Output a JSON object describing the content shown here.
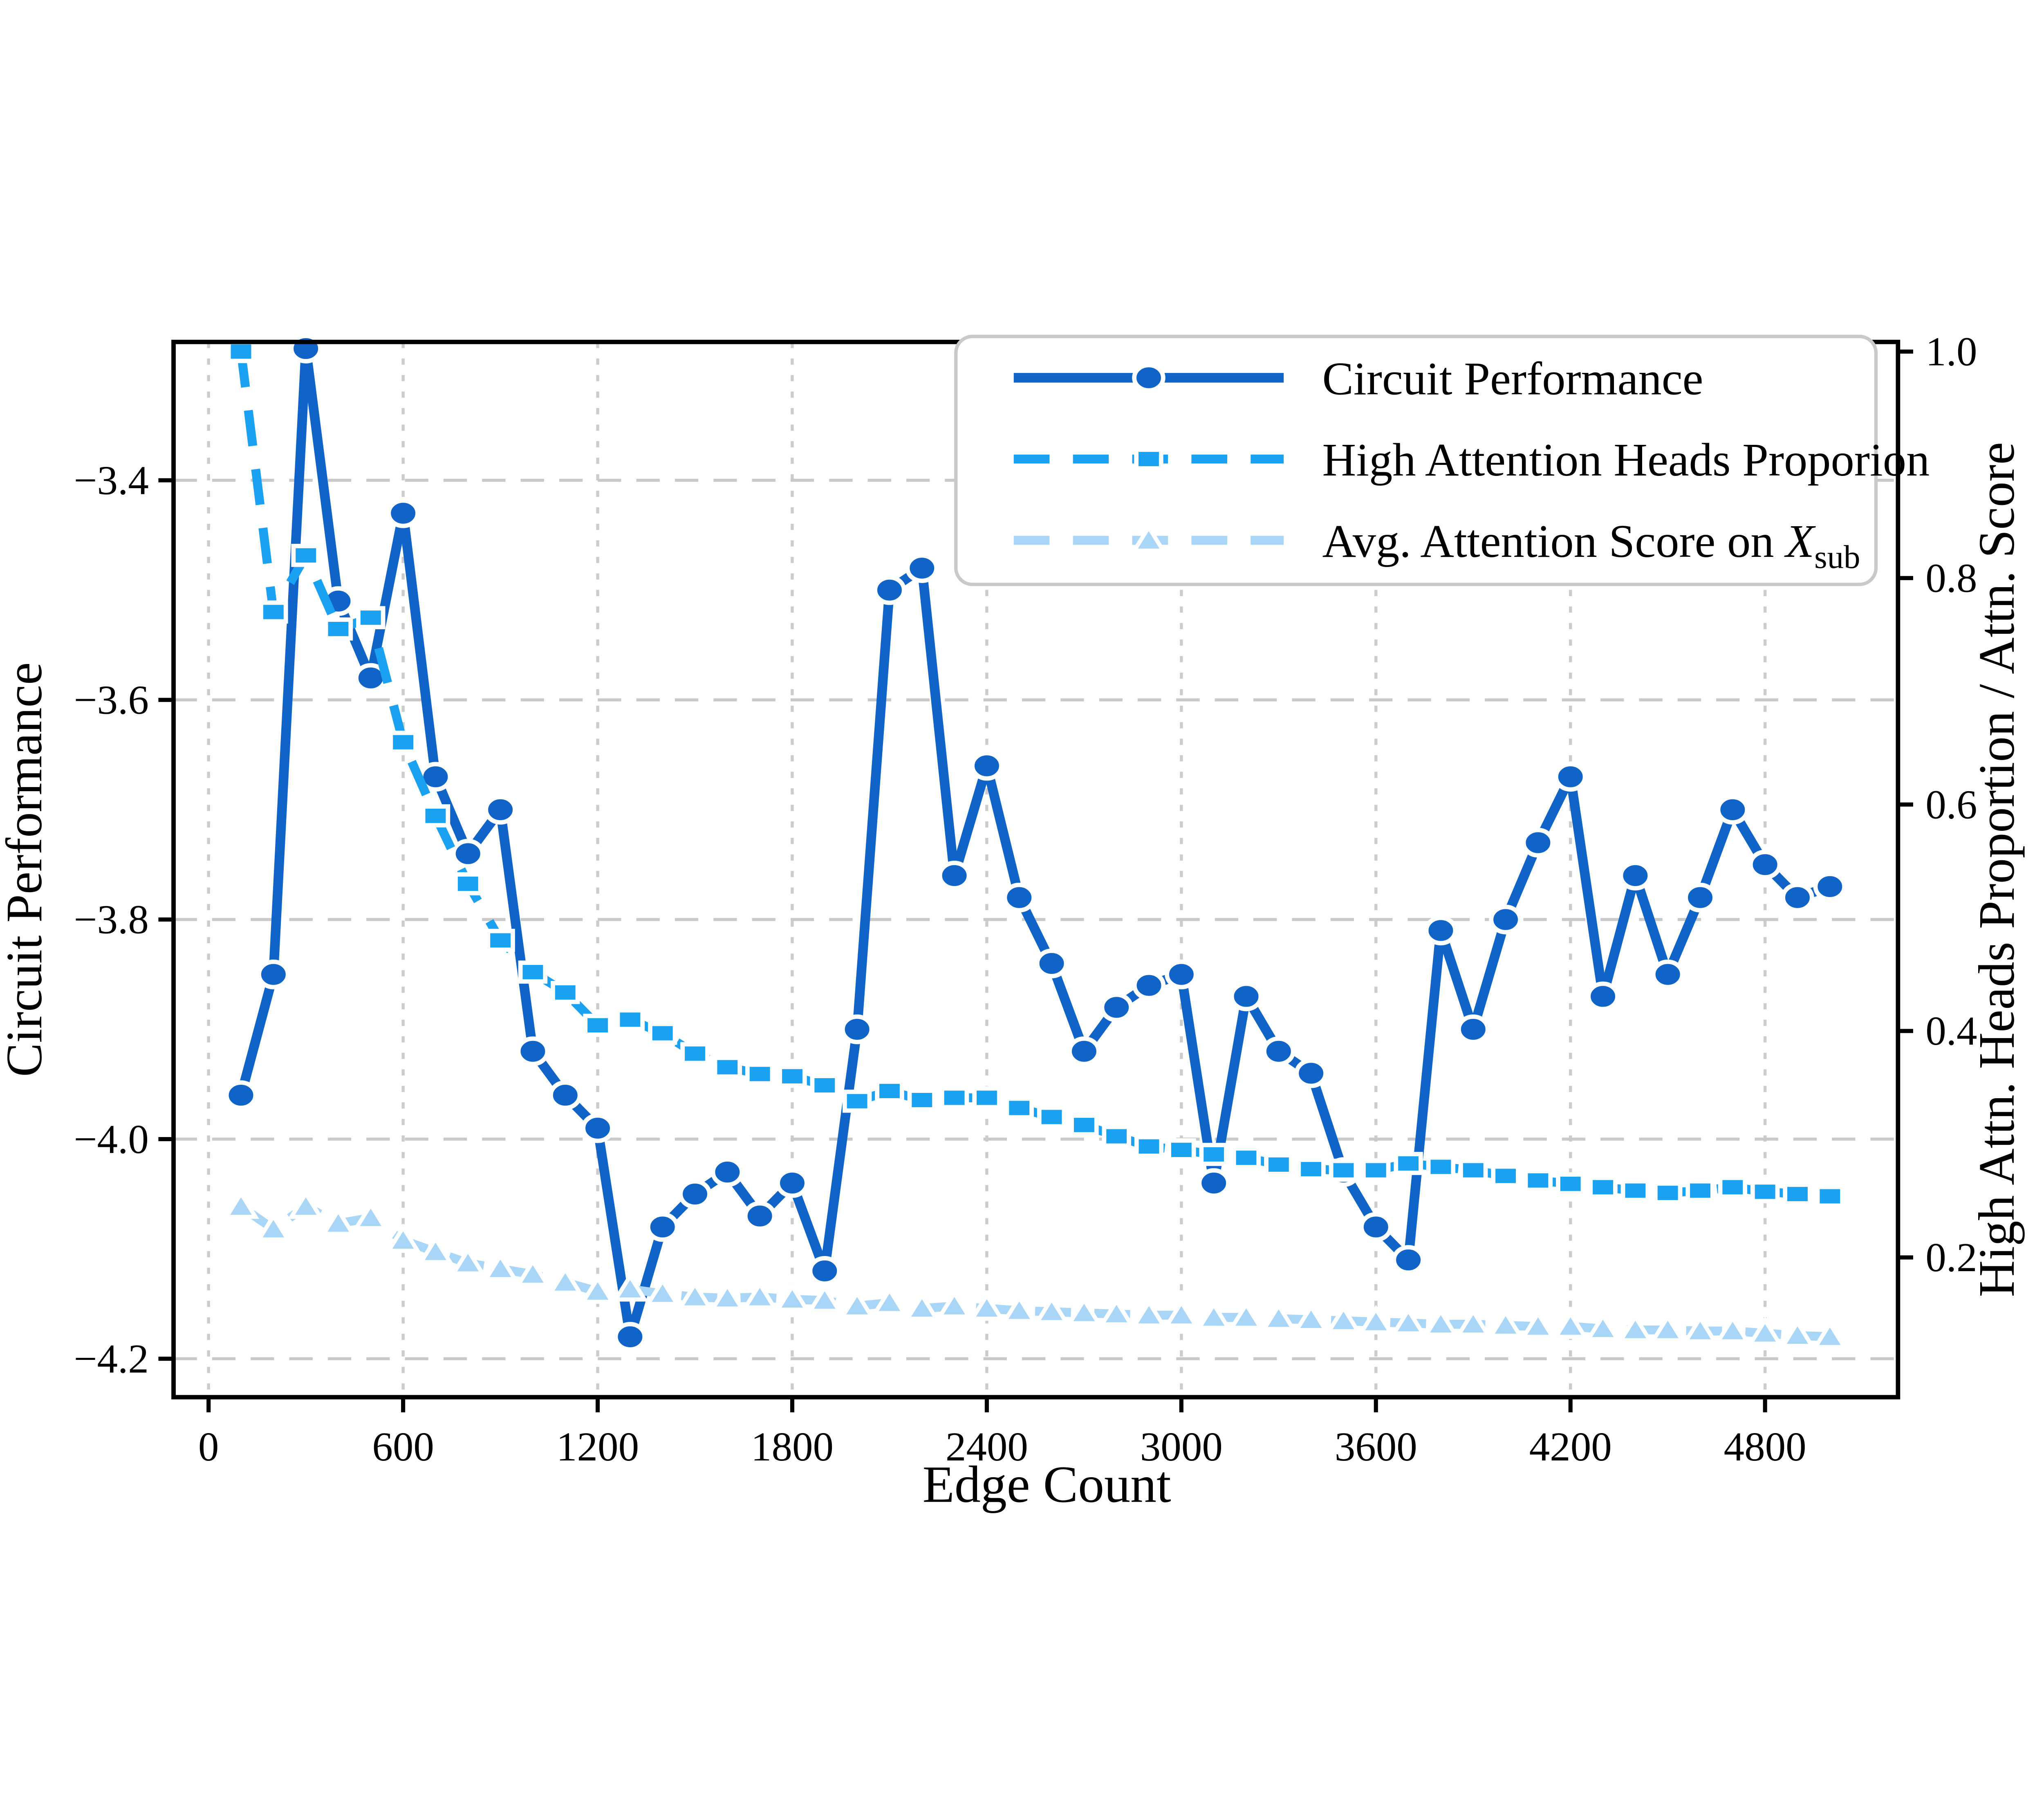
{
  "chart_data": {
    "type": "line",
    "title": "",
    "xlabel": "Edge Count",
    "ylabel_left": "Circuit Performance",
    "ylabel_right": "High Attn. Heads Proportion / Attn. Score",
    "x_ticks": [
      0,
      600,
      1200,
      1800,
      2400,
      3000,
      3600,
      4200,
      4800
    ],
    "y_left_ticks": [
      "−3.4",
      "−3.6",
      "−3.8",
      "−4.0",
      "−4.2"
    ],
    "y_left_tick_values": [
      -3.4,
      -3.6,
      -3.8,
      -4.0,
      -4.2
    ],
    "y_right_ticks": [
      "1.0",
      "0.8",
      "0.6",
      "0.4",
      "0.2"
    ],
    "y_right_tick_values": [
      1.0,
      0.8,
      0.6,
      0.4,
      0.2
    ],
    "xlim": [
      -108,
      5210
    ],
    "ylim_left": [
      -4.235,
      -3.274
    ],
    "ylim_right": [
      0.0766,
      1.0085
    ],
    "grid": true,
    "legend_position": "upper right",
    "x": [
      100,
      200,
      300,
      400,
      500,
      600,
      700,
      800,
      900,
      1000,
      1100,
      1200,
      1300,
      1400,
      1500,
      1600,
      1700,
      1800,
      1900,
      2000,
      2100,
      2200,
      2300,
      2400,
      2500,
      2600,
      2700,
      2800,
      2900,
      3000,
      3100,
      3200,
      3300,
      3400,
      3500,
      3600,
      3700,
      3800,
      3900,
      4000,
      4100,
      4200,
      4300,
      4400,
      4500,
      4600,
      4700,
      4800,
      4900,
      5000
    ],
    "series": [
      {
        "name": "Circuit Performance",
        "axis": "left",
        "color": "#1064C8",
        "marker": "circle",
        "linestyle": "solid",
        "values": [
          -3.96,
          -3.85,
          -3.28,
          -3.51,
          -3.58,
          -3.43,
          -3.67,
          -3.74,
          -3.7,
          -3.92,
          -3.96,
          -3.99,
          -4.18,
          -4.08,
          -4.05,
          -4.03,
          -4.07,
          -4.04,
          -4.12,
          -3.9,
          -3.5,
          -3.48,
          -3.76,
          -3.66,
          -3.78,
          -3.84,
          -3.92,
          -3.88,
          -3.86,
          -3.85,
          -4.04,
          -3.87,
          -3.92,
          -3.94,
          -4.03,
          -4.08,
          -4.11,
          -3.81,
          -3.9,
          -3.8,
          -3.73,
          -3.67,
          -3.87,
          -3.76,
          -3.85,
          -3.78,
          -3.7,
          -3.75,
          -3.78,
          -3.77
        ]
      },
      {
        "name": "High Attention Heads Proporion",
        "axis": "right",
        "color": "#1BA1F2",
        "marker": "square",
        "linestyle": "dashed",
        "values": [
          1.0,
          0.77,
          0.82,
          0.755,
          0.765,
          0.655,
          0.59,
          0.53,
          0.48,
          0.452,
          0.434,
          0.405,
          0.41,
          0.398,
          0.38,
          0.368,
          0.362,
          0.36,
          0.352,
          0.338,
          0.347,
          0.339,
          0.341,
          0.341,
          0.332,
          0.324,
          0.317,
          0.307,
          0.298,
          0.295,
          0.291,
          0.288,
          0.282,
          0.278,
          0.277,
          0.277,
          0.283,
          0.28,
          0.277,
          0.272,
          0.268,
          0.265,
          0.262,
          0.259,
          0.257,
          0.259,
          0.262,
          0.258,
          0.256,
          0.254
        ]
      },
      {
        "name": "Avg. Attention Score on X_sub",
        "legend_main": "Avg. Attention Score on ",
        "legend_var": "X",
        "legend_subscript": "sub",
        "axis": "right",
        "color": "#A9D6F7",
        "marker": "triangle",
        "linestyle": "dashed",
        "values": [
          0.245,
          0.225,
          0.245,
          0.23,
          0.235,
          0.215,
          0.205,
          0.195,
          0.19,
          0.185,
          0.178,
          0.17,
          0.172,
          0.168,
          0.165,
          0.164,
          0.165,
          0.163,
          0.162,
          0.157,
          0.16,
          0.155,
          0.157,
          0.155,
          0.153,
          0.152,
          0.151,
          0.15,
          0.149,
          0.149,
          0.147,
          0.147,
          0.146,
          0.145,
          0.144,
          0.143,
          0.142,
          0.141,
          0.141,
          0.14,
          0.139,
          0.139,
          0.137,
          0.136,
          0.136,
          0.135,
          0.135,
          0.133,
          0.131,
          0.13
        ]
      }
    ],
    "colors": {
      "spine": "#000000",
      "grid_h": "#c9c9c9",
      "grid_v": "#cccccc",
      "legend_border": "#c9c9c9",
      "background": "#ffffff",
      "marker_edge": "#ffffff"
    }
  }
}
